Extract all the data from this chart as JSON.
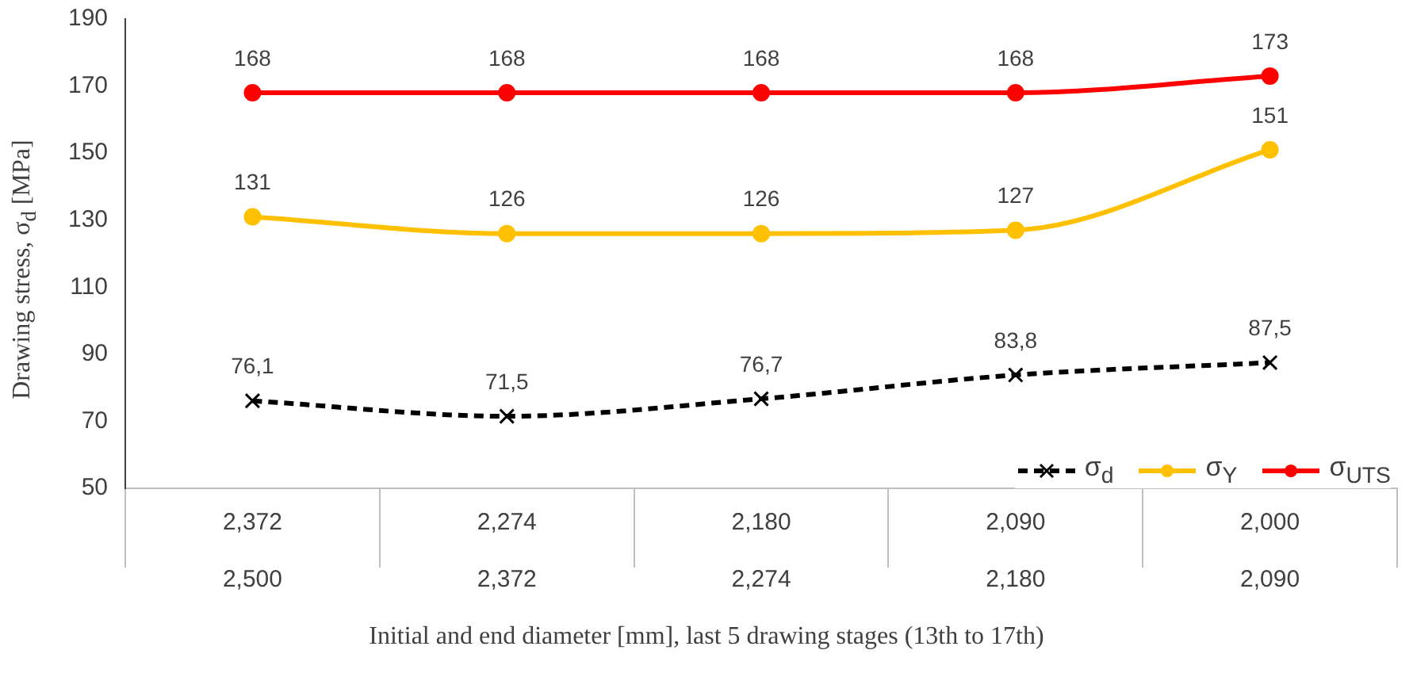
{
  "chart_data": {
    "type": "line",
    "xlabel": "Initial and end diameter [mm], last 5 drawing stages (13th to 17th)",
    "ylabel": "Drawing stress, σ$_{d}$ [MPa]",
    "categories": [
      "2,372\n2,500",
      "2,274\n2,372",
      "2,180\n2,274",
      "2,090\n2,180",
      "2,000\n2,090"
    ],
    "ylim": [
      50,
      190
    ],
    "yticks": [
      50,
      70,
      90,
      110,
      130,
      150,
      170,
      190
    ],
    "grid": false,
    "legend": "bottom right",
    "series": [
      {
        "name": "σ$_{d}$",
        "color": "#000000",
        "values": [
          76.1,
          71.5,
          76.7,
          83.8,
          87.5
        ],
        "value_labels": [
          "76,1",
          "71,5",
          "76,7",
          "83,8",
          "87,5"
        ],
        "marker": "cross",
        "line_style": "dashed"
      },
      {
        "name": "σ$_{Y}$",
        "color": "#ffc000",
        "values": [
          131,
          126,
          126,
          127,
          151
        ],
        "value_labels": [
          "131",
          "126",
          "126",
          "127",
          "151"
        ],
        "marker": "circle",
        "line_style": "solid"
      },
      {
        "name": "σ$_{UTS}$",
        "color": "#ff0000",
        "values": [
          168,
          168,
          168,
          168,
          173
        ],
        "value_labels": [
          "168",
          "168",
          "168",
          "168",
          "173"
        ],
        "marker": "circle",
        "line_style": "solid"
      }
    ]
  }
}
